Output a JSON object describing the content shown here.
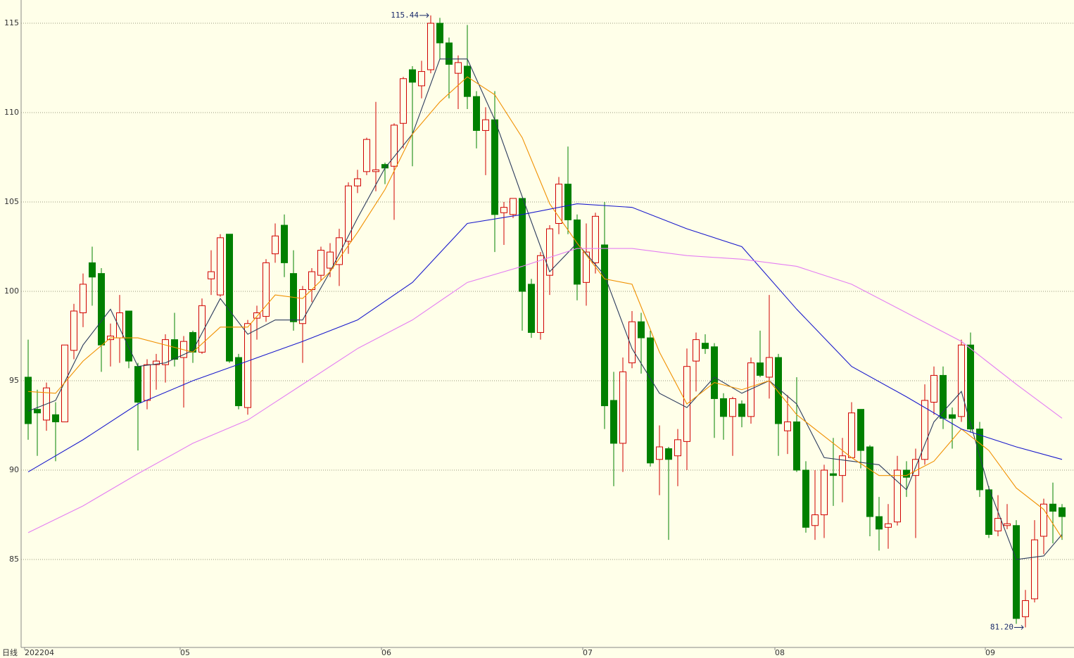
{
  "chart_data": {
    "type": "candlestick",
    "period_label": "日线",
    "ylim": [
      80.08,
      116.3
    ],
    "yticks": [
      85,
      90,
      95,
      100,
      105,
      110,
      115
    ],
    "xlim": [
      -0.8,
      114.5
    ],
    "xticks": [
      {
        "value": 0,
        "label": "202204"
      },
      {
        "value": 17,
        "label": "05"
      },
      {
        "value": 39,
        "label": "06"
      },
      {
        "value": 61,
        "label": "07"
      },
      {
        "value": 82,
        "label": "08"
      },
      {
        "value": 105,
        "label": "09"
      }
    ],
    "grid": true,
    "up_color": "#d00000",
    "down_color": "#008000",
    "open": [
      95.2,
      93.4,
      92.8,
      93.1,
      92.7,
      96.7,
      98.8,
      101.6,
      101.0,
      97.3,
      97.4,
      98.9,
      95.8,
      93.9,
      95.9,
      95.9,
      97.3,
      96.3,
      97.7,
      96.6,
      100.7,
      99.8,
      103.2,
      96.3,
      93.5,
      98.5,
      98.6,
      102.1,
      103.7,
      101.0,
      98.2,
      100.1,
      100.9,
      101.3,
      101.5,
      102.8,
      105.9,
      106.7,
      106.7,
      107.1,
      107.0,
      109.4,
      112.4,
      111.5,
      112.4,
      115.0,
      113.9,
      112.2,
      112.6,
      110.9,
      109.0,
      109.6,
      104.4,
      104.3,
      105.2,
      100.4,
      97.7,
      100.9,
      103.8,
      106.0,
      104.0,
      100.5,
      101.6,
      102.6,
      93.9,
      91.5,
      96.0,
      98.3,
      97.4,
      90.6,
      91.2,
      90.8,
      91.6,
      96.1,
      97.1,
      96.9,
      94.0,
      93.0,
      93.7,
      93.0,
      96.0,
      95.2,
      96.3,
      92.2,
      92.7,
      90.0,
      86.9,
      87.5,
      89.8,
      89.7,
      90.7,
      93.4,
      91.3,
      87.4,
      86.8,
      87.1,
      90.0,
      89.7,
      90.6,
      93.8,
      95.3,
      93.1,
      93.0,
      97.0,
      92.3,
      88.9,
      86.6,
      86.9,
      86.9,
      81.8,
      82.8,
      86.3,
      88.1,
      87.9
    ],
    "high": [
      97.3,
      94.5,
      94.9,
      93.8,
      97.0,
      99.3,
      101.0,
      102.5,
      101.3,
      98.2,
      99.8,
      98.9,
      96.0,
      96.2,
      96.5,
      97.6,
      98.8,
      97.5,
      97.8,
      99.6,
      102.3,
      103.2,
      103.2,
      96.5,
      98.4,
      99.2,
      101.8,
      103.8,
      104.3,
      102.3,
      100.3,
      101.3,
      102.5,
      102.7,
      103.5,
      106.1,
      106.8,
      108.6,
      110.6,
      107.2,
      109.4,
      112.0,
      112.6,
      112.9,
      115.44,
      115.3,
      114.2,
      113.2,
      114.9,
      111.2,
      110.3,
      111.2,
      105.0,
      105.2,
      105.2,
      100.7,
      102.2,
      103.7,
      106.4,
      108.1,
      104.3,
      103.8,
      104.4,
      105.0,
      95.5,
      96.3,
      98.9,
      98.8,
      97.8,
      92.5,
      91.3,
      92.3,
      96.8,
      97.7,
      97.6,
      97.1,
      94.3,
      94.1,
      93.9,
      96.3,
      97.8,
      99.8,
      96.5,
      94.2,
      95.2,
      90.5,
      90.0,
      90.3,
      91.8,
      91.8,
      93.8,
      93.4,
      91.4,
      88.5,
      88.1,
      90.8,
      90.5,
      91.2,
      94.8,
      95.8,
      95.8,
      93.5,
      97.3,
      97.7,
      92.7,
      89.1,
      88.6,
      88.1,
      87.2,
      83.3,
      87.2,
      88.4,
      89.3,
      88.1
    ],
    "low": [
      91.7,
      90.8,
      92.2,
      90.5,
      92.7,
      96.2,
      98.0,
      99.2,
      95.5,
      95.8,
      96.0,
      95.7,
      91.1,
      93.4,
      94.5,
      94.9,
      95.8,
      93.5,
      96.0,
      96.5,
      99.8,
      99.7,
      96.0,
      93.4,
      93.1,
      97.3,
      98.3,
      101.6,
      100.8,
      97.8,
      96.0,
      99.4,
      100.6,
      100.8,
      100.3,
      102.1,
      105.5,
      106.5,
      105.6,
      106.0,
      104.0,
      108.0,
      107.0,
      110.8,
      112.2,
      113.0,
      110.8,
      110.2,
      110.2,
      108.0,
      106.5,
      102.2,
      102.6,
      104.1,
      97.8,
      97.4,
      97.3,
      99.8,
      103.2,
      103.2,
      99.5,
      99.2,
      101.0,
      92.3,
      89.1,
      89.9,
      95.7,
      95.4,
      90.2,
      88.6,
      86.1,
      89.1,
      90.0,
      94.4,
      96.5,
      91.8,
      91.7,
      90.8,
      92.4,
      92.6,
      95.2,
      94.0,
      90.8,
      90.9,
      89.9,
      86.5,
      86.1,
      86.2,
      88.0,
      88.2,
      90.7,
      90.1,
      86.3,
      85.5,
      85.6,
      86.9,
      88.5,
      86.2,
      90.3,
      93.1,
      92.3,
      91.2,
      92.7,
      92.1,
      88.5,
      86.2,
      86.3,
      86.7,
      81.4,
      81.2,
      82.6,
      85.3,
      85.9,
      86.1
    ],
    "close": [
      92.6,
      93.2,
      94.6,
      92.7,
      97.0,
      98.9,
      100.4,
      100.8,
      97.0,
      97.5,
      98.8,
      96.1,
      93.8,
      95.9,
      96.1,
      97.3,
      96.2,
      97.2,
      96.6,
      99.2,
      101.1,
      103.0,
      96.1,
      93.6,
      98.2,
      98.8,
      101.6,
      103.1,
      101.6,
      98.3,
      100.1,
      101.1,
      102.3,
      102.2,
      103.0,
      105.9,
      106.3,
      108.5,
      106.8,
      106.9,
      109.3,
      111.9,
      111.7,
      112.3,
      115.0,
      113.9,
      112.7,
      112.8,
      110.9,
      109.0,
      109.6,
      104.3,
      104.7,
      105.2,
      100.0,
      97.7,
      102.0,
      103.5,
      106.0,
      104.0,
      100.4,
      102.2,
      104.2,
      93.6,
      91.5,
      95.5,
      98.3,
      97.4,
      90.4,
      91.3,
      90.6,
      91.7,
      95.8,
      97.3,
      96.8,
      94.0,
      93.0,
      94.0,
      93.0,
      96.0,
      95.3,
      96.3,
      92.6,
      92.7,
      90.0,
      86.8,
      87.5,
      90.0,
      89.7,
      90.8,
      93.2,
      91.1,
      87.4,
      86.7,
      87.0,
      90.0,
      89.6,
      90.6,
      93.9,
      95.3,
      92.9,
      92.9,
      97.0,
      92.3,
      88.9,
      86.4,
      87.3,
      87.0,
      81.7,
      82.7,
      86.1,
      88.1,
      87.7,
      87.4
    ],
    "lines": [
      {
        "color": "#2b3a5c",
        "x": [
          0,
          3,
          6,
          9,
          12,
          15,
          18,
          21,
          24,
          27,
          30,
          33,
          36,
          39,
          42,
          45,
          48,
          51,
          54,
          57,
          60,
          63,
          66,
          69,
          72,
          75,
          78,
          81,
          84,
          87,
          90,
          93,
          96,
          99,
          102,
          105,
          108,
          111,
          113
        ],
        "values": [
          93.3,
          93.9,
          97.0,
          99.0,
          95.8,
          96.0,
          96.7,
          99.6,
          97.6,
          98.4,
          98.4,
          101.1,
          104.1,
          106.9,
          108.8,
          113.0,
          113.0,
          109.6,
          105.3,
          101.1,
          102.7,
          100.9,
          96.8,
          94.3,
          93.5,
          95.2,
          94.3,
          95.0,
          93.7,
          90.7,
          90.5,
          90.3,
          88.9,
          92.7,
          94.4,
          89.0,
          85.0,
          85.2,
          86.4
        ]
      },
      {
        "color": "#f09000",
        "x": [
          0,
          3,
          6,
          9,
          12,
          15,
          18,
          21,
          24,
          27,
          30,
          33,
          36,
          39,
          42,
          45,
          48,
          51,
          54,
          57,
          60,
          63,
          66,
          69,
          72,
          75,
          78,
          81,
          84,
          87,
          90,
          93,
          96,
          99,
          102,
          105,
          108,
          111,
          113
        ],
        "values": [
          94.4,
          94.3,
          96.1,
          97.4,
          97.4,
          97.0,
          96.6,
          98.0,
          98.0,
          99.8,
          99.6,
          101.1,
          103.3,
          105.7,
          108.8,
          110.6,
          112.0,
          111.0,
          108.6,
          104.9,
          102.7,
          100.7,
          100.4,
          96.6,
          93.7,
          94.9,
          94.5,
          95.0,
          93.1,
          91.9,
          90.7,
          89.7,
          89.7,
          90.5,
          92.3,
          91.1,
          89.0,
          87.8,
          86.2
        ]
      },
      {
        "color": "#1a1acc",
        "x": [
          0,
          6,
          12,
          18,
          24,
          30,
          36,
          42,
          48,
          54,
          60,
          66,
          72,
          78,
          84,
          90,
          96,
          102,
          108,
          113
        ],
        "values": [
          89.9,
          91.7,
          93.7,
          95.0,
          96.1,
          97.2,
          98.4,
          100.5,
          103.8,
          104.3,
          104.9,
          104.7,
          103.5,
          102.5,
          99.0,
          95.8,
          94.1,
          92.3,
          91.3,
          90.6
        ]
      },
      {
        "color": "#e47ef2",
        "x": [
          0,
          6,
          12,
          18,
          24,
          30,
          36,
          42,
          48,
          54,
          60,
          66,
          72,
          78,
          84,
          90,
          96,
          102,
          108,
          113
        ],
        "values": [
          86.5,
          88.0,
          89.8,
          91.5,
          92.8,
          94.8,
          96.8,
          98.4,
          100.5,
          101.4,
          102.4,
          102.4,
          102.0,
          101.8,
          101.4,
          100.4,
          98.8,
          97.2,
          94.8,
          92.9
        ]
      }
    ],
    "annotations": [
      {
        "label": "115.44",
        "value": 115.44,
        "x": 44
      },
      {
        "label": "81.20",
        "value": 81.2,
        "x": 109
      }
    ]
  }
}
